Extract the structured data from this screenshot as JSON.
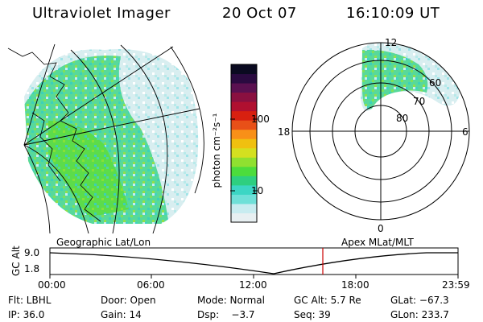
{
  "header": {
    "instrument": "Ultraviolet Imager",
    "date": "20 Oct 07",
    "time": "16:10:09 UT"
  },
  "colorbar": {
    "unit_label": "photon cm⁻²s⁻¹",
    "ticks": [
      {
        "label": "100"
      },
      {
        "label": "10"
      }
    ],
    "colors": [
      "#e8f0f2",
      "#c8ecf0",
      "#6fe0d8",
      "#3cd6c4",
      "#2ecf80",
      "#4cdc3c",
      "#90e030",
      "#d4e020",
      "#f0c010",
      "#f89018",
      "#e85018",
      "#d82010",
      "#b01030",
      "#8a1040",
      "#5a1050",
      "#2a0a40",
      "#0a0a20"
    ]
  },
  "geo_map": {
    "label": "Geographic Lat/Lon"
  },
  "polar_plot": {
    "label": "Apex MLat/MLT",
    "mlt_labels": [
      "12",
      "18",
      "6",
      "0"
    ],
    "lat_labels": [
      "60",
      "70",
      "80"
    ]
  },
  "timeline": {
    "y_axis_title": "GC Alt",
    "y_ticks": [
      "9.0",
      "1.8"
    ],
    "x_ticks": [
      "00:00",
      "06:00",
      "12:00",
      "18:00",
      "23:59"
    ],
    "marker_time": "16:10",
    "marker_color": "#cc0000"
  },
  "footer": {
    "filter": "Flt: LBHL",
    "door": "Door: Open",
    "mode": "Mode: Normal",
    "gc_alt": "GC Alt: 5.7 Re",
    "glat": "GLat: −67.3",
    "ip": "IP: 36.0",
    "gain": "Gain: 14",
    "dsp": "Dsp:    −3.7",
    "seq": "Seq: 39",
    "glon": "GLon: 233.7"
  }
}
